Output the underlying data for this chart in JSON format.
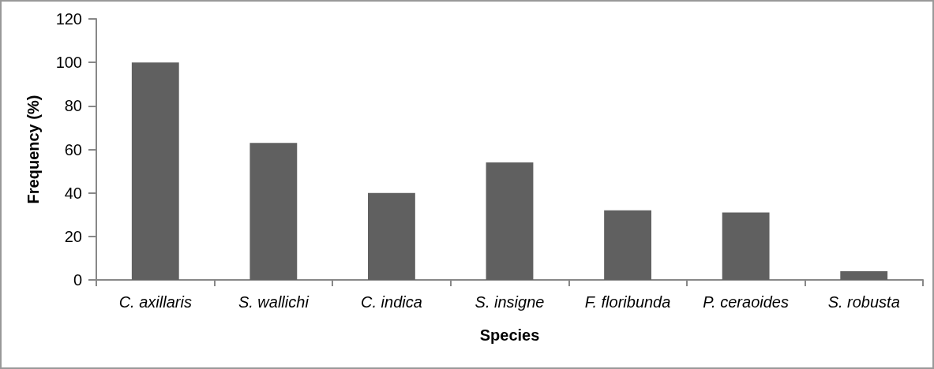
{
  "chart_data": {
    "type": "bar",
    "xlabel": "Species",
    "ylabel": "Frequency (%)",
    "categories": [
      "C. axillaris",
      "S. wallichi",
      "C. indica",
      "S. insigne",
      "F. floribunda",
      "P. ceraoides",
      "S. robusta"
    ],
    "values": [
      100,
      63,
      40,
      54,
      32,
      31,
      4
    ],
    "color": "#606060",
    "ylim": [
      0,
      120
    ],
    "yticks": [
      0,
      20,
      40,
      60,
      80,
      100,
      120
    ],
    "grid": false
  }
}
